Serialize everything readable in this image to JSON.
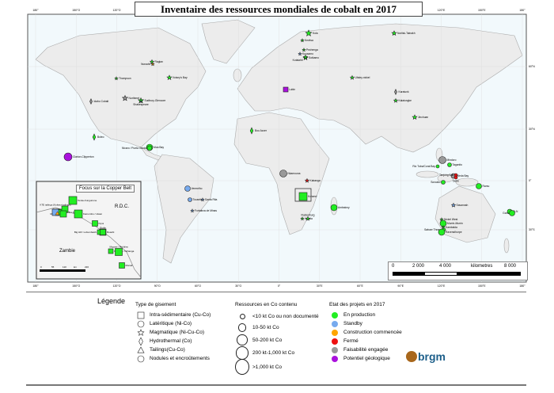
{
  "title": "Inventaire des ressources mondiales de cobalt en 2017",
  "graticule": {
    "lon_labels": [
      "180°",
      "150°O",
      "120°O",
      "90°O",
      "60°O",
      "30°O",
      "0°",
      "30°E",
      "60°E",
      "90°E",
      "120°E",
      "150°E",
      "180°"
    ],
    "lat_labels": [
      "60°N",
      "30°N",
      "0°",
      "30°S"
    ]
  },
  "inset": {
    "title": "Focus sur la Copper Belt",
    "country_labels": [
      "R.D.C.",
      "Zambie"
    ],
    "scale": [
      "0",
      "55",
      "110",
      "km",
      "220"
    ],
    "deposits": [
      "Tenke-Fungurume",
      "Kamoto / KOV",
      "Comide",
      "Mutanda",
      "KTE tailings (Kolwezi tailings)",
      "Kamombo / Likasi",
      "Ruashi",
      "Kipoi",
      "Big Hill / Lubumbashi",
      "Etoile",
      "Konkola / Nchanga",
      "Mopani / Mufulira",
      "Munali"
    ]
  },
  "scalebar": {
    "ticks": [
      "0",
      "2 000",
      "4 000",
      "8 000"
    ],
    "unit": "kilometres"
  },
  "colors": {
    "en_production": "#22ee22",
    "standby": "#77aaee",
    "construction": "#ffa500",
    "ferme": "#ee1111",
    "faisabilite": "#999999",
    "potentiel": "#aa11dd",
    "land": "#ececec",
    "ocean": "#f2f9fc"
  },
  "deposits": [
    {
      "name": "Kevitsa",
      "type": "magmatic",
      "status": "en_production"
    },
    {
      "name": "Sotkamo",
      "type": "magmatic",
      "status": "en_production"
    },
    {
      "name": "Kola",
      "type": "magmatic",
      "status": "en_production"
    },
    {
      "name": "Pechenga",
      "type": "magmatic",
      "status": "en_production"
    },
    {
      "name": "Kuusamo",
      "type": "magmatic",
      "status": "standby"
    },
    {
      "name": "Kotalahti",
      "type": "magmatic",
      "status": "en_production"
    },
    {
      "name": "Norilsk-Talnakh",
      "type": "magmatic",
      "status": "en_production"
    },
    {
      "name": "Ufaley-nickel",
      "type": "magmatic",
      "status": "en_production"
    },
    {
      "name": "Lubin",
      "type": "sediment",
      "status": "potentiel"
    },
    {
      "name": "Karatunk",
      "type": "hydrothermal",
      "status": "faisabilite"
    },
    {
      "name": "Kalatongke",
      "type": "magmatic",
      "status": "en_production"
    },
    {
      "name": "Jinchuan",
      "type": "magmatic",
      "status": "en_production"
    },
    {
      "name": "Bou Azzer",
      "type": "hydrothermal",
      "status": "en_production"
    },
    {
      "name": "Idaho Cobalt",
      "type": "hydrothermal",
      "status": "faisabilite"
    },
    {
      "name": "Thompson",
      "type": "magmatic",
      "status": "en_production"
    },
    {
      "name": "Raglan",
      "type": "magmatic",
      "status": "en_production"
    },
    {
      "name": "Nunavik",
      "type": "magmatic",
      "status": "construction"
    },
    {
      "name": "Voisey's Bay",
      "type": "magmatic",
      "status": "en_production"
    },
    {
      "name": "Northmet",
      "type": "magmatic",
      "status": "faisabilite"
    },
    {
      "name": "Sudbury-Glencore",
      "type": "magmatic",
      "status": "en_production"
    },
    {
      "name": "Shakespeare",
      "type": "magmatic",
      "status": "standby"
    },
    {
      "name": "Boleo",
      "type": "hydrothermal",
      "status": "en_production"
    },
    {
      "name": "Moa Bay",
      "type": "lateritic",
      "status": "en_production"
    },
    {
      "name": "Nicaro / Punta Gorda",
      "type": "lateritic",
      "status": "en_production"
    },
    {
      "name": "Clarion-Clipperton",
      "type": "nodules",
      "status": "potentiel"
    },
    {
      "name": "Vermelho",
      "type": "lateritic",
      "status": "standby"
    },
    {
      "name": "Tocantins",
      "type": "lateritic",
      "status": "standby"
    },
    {
      "name": "Santa Rita",
      "type": "magmatic",
      "status": "standby"
    },
    {
      "name": "Fortaleza de Minas",
      "type": "magmatic",
      "status": "standby"
    },
    {
      "name": "Nkamouna",
      "type": "lateritic",
      "status": "faisabilite"
    },
    {
      "name": "Kabanga",
      "type": "magmatic",
      "status": "ferme"
    },
    {
      "name": "Kolwezi",
      "type": "sediment",
      "status": "en_production"
    },
    {
      "name": "Impala",
      "type": "magmatic",
      "status": "en_production"
    },
    {
      "name": "Rustenburg",
      "type": "magmatic",
      "status": "en_production"
    },
    {
      "name": "Ambatovy",
      "type": "lateritic",
      "status": "en_production"
    },
    {
      "name": "Mindoro",
      "type": "lateritic",
      "status": "faisabilite"
    },
    {
      "name": "Taganito",
      "type": "lateritic",
      "status": "en_production"
    },
    {
      "name": "Rio Tuba/Coral Bay",
      "type": "lateritic",
      "status": "en_production"
    },
    {
      "name": "Weda Bay",
      "type": "lateritic",
      "status": "faisabilite"
    },
    {
      "name": "Tanjung Buli",
      "type": "lateritic",
      "status": "ferme"
    },
    {
      "name": "Gebe",
      "type": "lateritic",
      "status": "ferme"
    },
    {
      "name": "Soroako",
      "type": "lateritic",
      "status": "en_production"
    },
    {
      "name": "Ramu",
      "type": "lateritic",
      "status": "en_production"
    },
    {
      "name": "Savannah",
      "type": "magmatic",
      "status": "standby"
    },
    {
      "name": "Nickel West",
      "type": "magmatic",
      "status": "en_production"
    },
    {
      "name": "Murrin-Murrin",
      "type": "lateritic",
      "status": "en_production"
    },
    {
      "name": "Kambalda",
      "type": "magmatic",
      "status": "en_production"
    },
    {
      "name": "Sabuer Thrang",
      "type": "lateritic",
      "status": "en_production"
    },
    {
      "name": "Ravensthorpe",
      "type": "lateritic",
      "status": "en_production"
    },
    {
      "name": "SLN",
      "type": "lateritic",
      "status": "en_production"
    },
    {
      "name": "Goro",
      "type": "lateritic",
      "status": "en_production"
    }
  ],
  "legend": {
    "title": "Légende",
    "type_heading": "Type de gisement",
    "types": [
      "Intra-sédimentaire (Cu-Co)",
      "Latéritique (Ni-Co)",
      "Magmatique (Ni-Cu-Co)",
      "Hydrothermal (Co)",
      "Tailings(Cu-Co)",
      "Nodules et encroûtements"
    ],
    "size_heading": "Ressources en Co contenu",
    "sizes": [
      "<10 kt Co ou non documenté",
      "10-50 kt Co",
      "50-200 kt Co",
      "200 kt-1,000 kt Co",
      ">1,000 kt Co"
    ],
    "status_heading": "Etat des projets en 2017",
    "statuses": [
      {
        "label": "En production",
        "key": "en_production"
      },
      {
        "label": "Standby",
        "key": "standby"
      },
      {
        "label": "Construction commencée",
        "key": "construction"
      },
      {
        "label": "Fermé",
        "key": "ferme"
      },
      {
        "label": "Faisabilité engagée",
        "key": "faisabilite"
      },
      {
        "label": "Potentiel géologique",
        "key": "potentiel"
      }
    ],
    "logo": "brgm"
  }
}
